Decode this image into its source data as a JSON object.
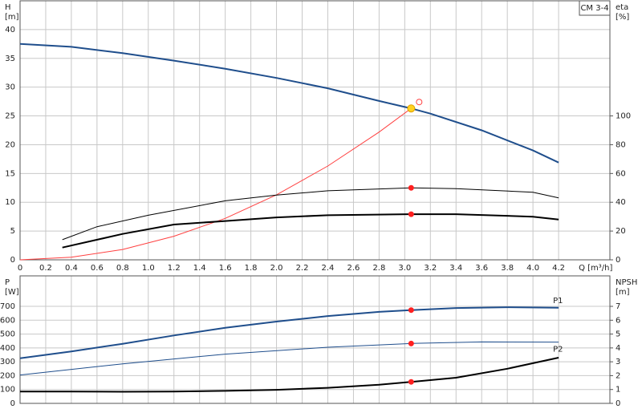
{
  "chart_data": [
    {
      "type": "line",
      "label_box": "CM 3-4",
      "y_title": [
        "H",
        "[m]"
      ],
      "y2_title": [
        "eta",
        "[%]"
      ],
      "x_title": "Q [m³/h]",
      "xlim": [
        0,
        4.6
      ],
      "ylim": [
        0,
        45
      ],
      "y2lim": [
        0,
        180
      ],
      "xticks": [
        0,
        0.2,
        0.4,
        0.6,
        0.8,
        {
          "value": 1,
          "label": "1.0"
        },
        1.2,
        1.4,
        1.6,
        1.8,
        {
          "value": 2,
          "label": "2.0"
        },
        2.2,
        2.4,
        2.6,
        2.8,
        {
          "value": 3,
          "label": "3.0"
        },
        3.2,
        3.4,
        3.6,
        3.8,
        {
          "value": 4,
          "label": "4.0"
        },
        4.2
      ],
      "show_xtick_labels": true,
      "yticks": [
        0,
        5,
        10,
        15,
        20,
        25,
        30,
        35,
        40
      ],
      "y2ticks": [
        0,
        20,
        40,
        60,
        80,
        100
      ],
      "grid": true,
      "series": [
        {
          "color": "#1f4e8c",
          "width": 2,
          "x": [
            0,
            0.4,
            0.8,
            1.2,
            1.6,
            2.0,
            2.4,
            2.8,
            3.05,
            3.2,
            3.6,
            4.0,
            4.2
          ],
          "values": [
            37.5,
            37.0,
            35.9,
            34.6,
            33.2,
            31.6,
            29.8,
            27.6,
            26.3,
            25.4,
            22.5,
            19.0,
            16.9
          ]
        },
        {
          "color": "#ff4040",
          "width": 1,
          "x": [
            0,
            0.4,
            0.8,
            1.2,
            1.6,
            2.0,
            2.4,
            2.8,
            3.05
          ],
          "values": [
            0,
            0.45,
            1.8,
            4.1,
            7.2,
            11.3,
            16.3,
            22.2,
            26.3
          ]
        },
        {
          "color": "#000000",
          "width": 1,
          "axis": "y2",
          "x": [
            0.33,
            0.6,
            1.0,
            1.6,
            2.0,
            2.4,
            3.05,
            3.4,
            4.0,
            4.2
          ],
          "values": [
            14,
            23,
            31,
            41,
            45,
            48,
            50,
            49.5,
            47,
            43
          ]
        },
        {
          "color": "#000000",
          "width": 2,
          "axis": "y2",
          "x": [
            0.33,
            0.8,
            1.2,
            1.6,
            2.0,
            2.4,
            3.05,
            3.4,
            4.0,
            4.2
          ],
          "values": [
            8.5,
            18,
            24.5,
            27,
            29.5,
            31,
            31.7,
            31.7,
            30,
            28
          ]
        }
      ],
      "markers": [
        {
          "x": 3.05,
          "y": 26.3,
          "color": "#ffd21f"
        },
        {
          "x": 3.05,
          "y": 50,
          "color": "#ff2020",
          "axis": "y2"
        },
        {
          "x": 3.05,
          "y": 31.7,
          "color": "#ff2020",
          "axis": "y2"
        }
      ]
    },
    {
      "type": "line",
      "y_title": [
        "P",
        "[W]"
      ],
      "y2_title": [
        "NPSH",
        "[m]"
      ],
      "xlim": [
        0,
        4.6
      ],
      "ylim": [
        0,
        920
      ],
      "y2lim": [
        0,
        9.2
      ],
      "xticks": [
        0,
        0.2,
        0.4,
        0.6,
        0.8,
        1,
        1.2,
        1.4,
        1.6,
        1.8,
        2,
        2.2,
        2.4,
        2.6,
        2.8,
        3,
        3.2,
        3.4,
        3.6,
        3.8,
        4,
        4.2
      ],
      "show_xtick_labels": false,
      "yticks": [
        0,
        100,
        200,
        300,
        400,
        500,
        600,
        700
      ],
      "y2ticks": [
        0,
        1,
        2,
        3,
        4,
        5,
        6,
        7
      ],
      "grid": true,
      "series": [
        {
          "name": "P1",
          "color": "#1f4e8c",
          "width": 2,
          "x": [
            0,
            0.4,
            0.8,
            1.2,
            1.6,
            2.0,
            2.4,
            2.8,
            3.05,
            3.4,
            3.8,
            4.2
          ],
          "values": [
            325,
            375,
            430,
            490,
            545,
            590,
            630,
            660,
            673,
            688,
            694,
            690
          ]
        },
        {
          "name": "P2",
          "color": "#1f4e8c",
          "width": 1,
          "x": [
            0,
            0.8,
            1.6,
            2.4,
            3.05,
            3.6,
            4.2
          ],
          "values": [
            205,
            285,
            355,
            405,
            432,
            443,
            442
          ]
        },
        {
          "color": "#000000",
          "width": 2,
          "axis": "y2",
          "x": [
            0,
            0.4,
            0.8,
            1.2,
            1.6,
            2.0,
            2.4,
            2.8,
            3.05,
            3.4,
            3.8,
            4.2
          ],
          "values": [
            0.85,
            0.85,
            0.84,
            0.85,
            0.9,
            0.98,
            1.12,
            1.35,
            1.55,
            1.85,
            2.5,
            3.3
          ]
        }
      ],
      "markers": [
        {
          "x": 3.05,
          "y": 673,
          "color": "#ff2020"
        },
        {
          "x": 3.05,
          "y": 432,
          "color": "#ff2020"
        },
        {
          "x": 3.05,
          "y": 1.55,
          "color": "#ff2020",
          "axis": "y2"
        }
      ]
    }
  ]
}
